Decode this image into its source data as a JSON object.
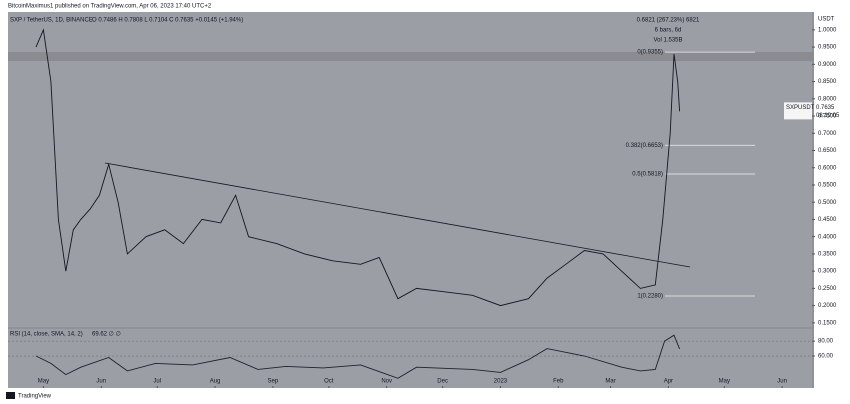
{
  "header": "BitcoinMaximus1 published on TradingView.com, Apr 06, 2023 17:40 UTC+2",
  "footer": "TradingView",
  "chart_data": [
    {
      "type": "line",
      "title": "SXP / TetherUS, 1D, BINANCE",
      "ohlc": "O 0.7486  H 0.7808  L 0.7104  C 0.7635  +0.0145 (+1.94%)",
      "y_label": "USDT",
      "color": "#131722",
      "x": [
        -4,
        0,
        4,
        8,
        12,
        16,
        20,
        25,
        30,
        35,
        40,
        45,
        55,
        65,
        75,
        85,
        95,
        103,
        110,
        125,
        140,
        155,
        170,
        180,
        190,
        200,
        215,
        230,
        245,
        260,
        270,
        280,
        290,
        300,
        310,
        320,
        328,
        332,
        336,
        338,
        340,
        341
      ],
      "values": [
        0.95,
        1.0,
        0.85,
        0.45,
        0.3,
        0.42,
        0.45,
        0.48,
        0.52,
        0.61,
        0.5,
        0.35,
        0.4,
        0.42,
        0.38,
        0.45,
        0.44,
        0.52,
        0.4,
        0.38,
        0.35,
        0.33,
        0.32,
        0.34,
        0.22,
        0.25,
        0.24,
        0.23,
        0.2,
        0.22,
        0.28,
        0.32,
        0.36,
        0.35,
        0.3,
        0.25,
        0.26,
        0.45,
        0.7,
        0.93,
        0.85,
        0.7635
      ],
      "xlim": [
        -19,
        412
      ],
      "ylim": [
        0.138,
        1.046
      ],
      "yticks": [
        {
          "value": 1,
          "label": "1.0000"
        },
        {
          "value": 0.95,
          "label": "0.9500"
        },
        {
          "value": 0.9,
          "label": "0.9000"
        },
        {
          "value": 0.85,
          "label": "0.8500"
        },
        {
          "value": 0.8,
          "label": "0.8000"
        },
        {
          "value": 0.75,
          "label": "0.7500"
        },
        {
          "value": 0.7,
          "label": "0.7000"
        },
        {
          "value": 0.65,
          "label": "0.6500"
        },
        {
          "value": 0.6,
          "label": "0.6000"
        },
        {
          "value": 0.55,
          "label": "0.5500"
        },
        {
          "value": 0.5,
          "label": "0.5000"
        },
        {
          "value": 0.45,
          "label": "0.4500"
        },
        {
          "value": 0.4,
          "label": "0.4000"
        },
        {
          "value": 0.35,
          "label": "0.3500"
        },
        {
          "value": 0.3,
          "label": "0.3000"
        },
        {
          "value": 0.25,
          "label": "0.2500"
        },
        {
          "value": 0.2,
          "label": "0.2000"
        },
        {
          "value": 0.15,
          "label": "0.1500"
        }
      ],
      "fib": [
        {
          "value": 0.9355,
          "label": "0(0.9355)"
        },
        {
          "value": 0.6653,
          "label": "0.382(0.6653)"
        },
        {
          "value": 0.5818,
          "label": "0.5(0.5818)"
        },
        {
          "value": 0.228,
          "label": "1(0.2280)"
        }
      ],
      "measure": [
        "0.6821 (267.23%) 6821",
        "6 bars, 6d",
        "Vol 1.535B"
      ],
      "symbol": "SXPUSDT",
      "last": 0.7635,
      "countdown": "08:19:05"
    },
    {
      "type": "line",
      "title": "RSI (14, close, SMA, 14, 2)",
      "value_text": "69.62  ∅  ∅",
      "color": "#1e222d",
      "x": [
        -4,
        4,
        12,
        20,
        35,
        45,
        60,
        80,
        100,
        115,
        130,
        150,
        170,
        190,
        200,
        230,
        245,
        260,
        270,
        290,
        310,
        320,
        328,
        333,
        338,
        341
      ],
      "values": [
        60,
        50,
        35,
        45,
        58,
        40,
        50,
        48,
        58,
        42,
        46,
        44,
        48,
        30,
        45,
        42,
        38,
        55,
        70,
        60,
        45,
        40,
        42,
        80,
        88,
        69.62
      ],
      "xlim": [
        -19,
        412
      ],
      "ylim": [
        21,
        95
      ],
      "yticks": [
        {
          "value": 80,
          "label": "80.00"
        },
        {
          "value": 60,
          "label": "60.00"
        }
      ],
      "xticks": [
        {
          "value": 0,
          "label": "May"
        },
        {
          "value": 31,
          "label": "Jun"
        },
        {
          "value": 61,
          "label": "Jul"
        },
        {
          "value": 92,
          "label": "Aug"
        },
        {
          "value": 123,
          "label": "Sep"
        },
        {
          "value": 153,
          "label": "Oct"
        },
        {
          "value": 184,
          "label": "Nov"
        },
        {
          "value": 214,
          "label": "Dec"
        },
        {
          "value": 245,
          "label": "2023"
        },
        {
          "value": 276,
          "label": "Feb"
        },
        {
          "value": 304,
          "label": "Mar"
        },
        {
          "value": 335,
          "label": "Apr"
        },
        {
          "value": 365,
          "label": "May"
        },
        {
          "value": 396,
          "label": "Jun"
        }
      ]
    }
  ]
}
